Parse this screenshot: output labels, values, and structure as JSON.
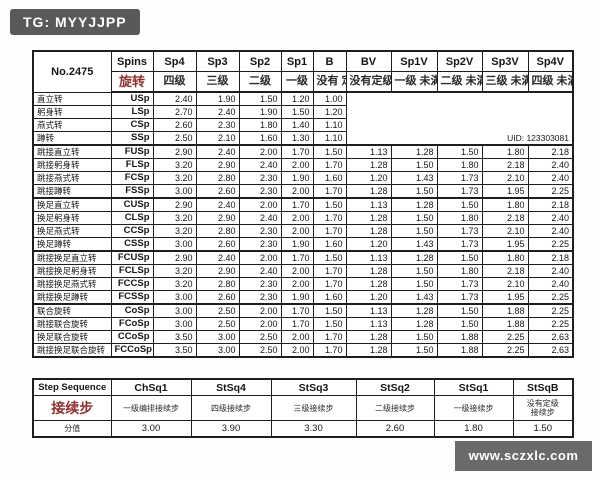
{
  "badge": {
    "text": "TG: MYYJJPP"
  },
  "watermark": {
    "text": "www.sczxlc.com"
  },
  "colors": {
    "accent_red": "#8e3230",
    "badge_bg": "#59595b",
    "watermark_bg": "#6a6a6a",
    "border": "#1e1e1e"
  },
  "table": {
    "corner_label": "No.2475",
    "uid": "UID: 123303081",
    "columns": [
      {
        "code": "Spins",
        "sub": "旋转"
      },
      {
        "code": "Sp4",
        "sub": "四级"
      },
      {
        "code": "Sp3",
        "sub": "三级"
      },
      {
        "code": "Sp2",
        "sub": "二级"
      },
      {
        "code": "Sp1",
        "sub": "一级"
      },
      {
        "code": "B",
        "sub": "没有\n定级"
      },
      {
        "code": "BV",
        "sub": "没有定级\n未满足要求"
      },
      {
        "code": "Sp1V",
        "sub": "一级\n未满足要求"
      },
      {
        "code": "Sp2V",
        "sub": "二级\n未满足要求"
      },
      {
        "code": "Sp3V",
        "sub": "三级\n未满足要求"
      },
      {
        "code": "Sp4V",
        "sub": "四级\n未满足要求"
      }
    ],
    "group_end_rows": [
      3,
      7,
      11,
      15
    ],
    "rows": [
      {
        "name": "直立转",
        "code": "USp",
        "values": [
          "2.40",
          "1.90",
          "1.50",
          "1.20",
          "1.00",
          "",
          "",
          "",
          "",
          ""
        ]
      },
      {
        "name": "躬身转",
        "code": "LSp",
        "values": [
          "2.70",
          "2.40",
          "1.90",
          "1.50",
          "1.20",
          "",
          "",
          "",
          "",
          ""
        ]
      },
      {
        "name": "燕式转",
        "code": "CSp",
        "values": [
          "2.60",
          "2.30",
          "1.80",
          "1.40",
          "1.10",
          "",
          "",
          "",
          "",
          ""
        ]
      },
      {
        "name": "蹲转",
        "code": "SSp",
        "values": [
          "2.50",
          "2.10",
          "1.60",
          "1.30",
          "1.10",
          "",
          "",
          "",
          "",
          ""
        ]
      },
      {
        "name": "跳接直立转",
        "code": "FUSp",
        "values": [
          "2.90",
          "2.40",
          "2.00",
          "1.70",
          "1.50",
          "1.13",
          "1.28",
          "1.50",
          "1.80",
          "2.18"
        ]
      },
      {
        "name": "跳接躬身转",
        "code": "FLSp",
        "values": [
          "3.20",
          "2.90",
          "2.40",
          "2.00",
          "1.70",
          "1.28",
          "1.50",
          "1.80",
          "2.18",
          "2.40"
        ]
      },
      {
        "name": "跳接燕式转",
        "code": "FCSp",
        "values": [
          "3.20",
          "2.80",
          "2.30",
          "1.90",
          "1.60",
          "1.20",
          "1.43",
          "1.73",
          "2.10",
          "2.40"
        ]
      },
      {
        "name": "跳接蹲转",
        "code": "FSSp",
        "values": [
          "3.00",
          "2.60",
          "2.30",
          "2.00",
          "1.70",
          "1.28",
          "1.50",
          "1.73",
          "1.95",
          "2.25"
        ]
      },
      {
        "name": "换足直立转",
        "code": "CUSp",
        "values": [
          "2.90",
          "2.40",
          "2.00",
          "1.70",
          "1.50",
          "1.13",
          "1.28",
          "1.50",
          "1.80",
          "2.18"
        ]
      },
      {
        "name": "换足躬身转",
        "code": "CLSp",
        "values": [
          "3.20",
          "2.90",
          "2.40",
          "2.00",
          "1.70",
          "1.28",
          "1.50",
          "1.80",
          "2.18",
          "2.40"
        ]
      },
      {
        "name": "换足燕式转",
        "code": "CCSp",
        "values": [
          "3.20",
          "2.80",
          "2.30",
          "2.00",
          "1.70",
          "1.28",
          "1.50",
          "1.73",
          "2.10",
          "2.40"
        ]
      },
      {
        "name": "换足蹲转",
        "code": "CSSp",
        "values": [
          "3.00",
          "2.60",
          "2.30",
          "1.90",
          "1.60",
          "1.20",
          "1.43",
          "1.73",
          "1.95",
          "2.25"
        ]
      },
      {
        "name": "跳接换足直立转",
        "code": "FCUSp",
        "values": [
          "2.90",
          "2.40",
          "2.00",
          "1.70",
          "1.50",
          "1.13",
          "1.28",
          "1.50",
          "1.80",
          "2.18"
        ]
      },
      {
        "name": "跳接换足躬身转",
        "code": "FCLSp",
        "values": [
          "3.20",
          "2.90",
          "2.40",
          "2.00",
          "1.70",
          "1.28",
          "1.50",
          "1.80",
          "2.18",
          "2.40"
        ]
      },
      {
        "name": "跳接换足燕式转",
        "code": "FCCSp",
        "values": [
          "3.20",
          "2.80",
          "2.30",
          "2.00",
          "1.70",
          "1.28",
          "1.50",
          "1.73",
          "2.10",
          "2.40"
        ]
      },
      {
        "name": "跳接换足蹲转",
        "code": "FCSSp",
        "values": [
          "3.00",
          "2.60",
          "2.30",
          "1.90",
          "1.60",
          "1.20",
          "1.43",
          "1.73",
          "1.95",
          "2.25"
        ]
      },
      {
        "name": "联合旋转",
        "code": "CoSp",
        "values": [
          "3.00",
          "2.50",
          "2.00",
          "1.70",
          "1.50",
          "1.13",
          "1.28",
          "1.50",
          "1.88",
          "2.25"
        ]
      },
      {
        "name": "跳接联合旋转",
        "code": "FCoSp",
        "values": [
          "3.00",
          "2.50",
          "2.00",
          "1.70",
          "1.50",
          "1.13",
          "1.28",
          "1.50",
          "1.88",
          "2.25"
        ]
      },
      {
        "name": "换足联合旋转",
        "code": "CCoSp",
        "values": [
          "3.50",
          "3.00",
          "2.50",
          "2.00",
          "1.70",
          "1.28",
          "1.50",
          "1.88",
          "2.25",
          "2.63"
        ]
      },
      {
        "name": "跳接换足联合旋转",
        "code": "FCCoSp",
        "values": [
          "3.50",
          "3.00",
          "2.50",
          "2.00",
          "1.70",
          "1.28",
          "1.50",
          "1.88",
          "2.25",
          "2.63"
        ]
      }
    ]
  },
  "steps": {
    "title": "Step Sequence",
    "red_label": "接续步",
    "score_label": "分值",
    "cols": [
      {
        "code": "ChSq1",
        "desc": "一级编排接续步",
        "value": "3.00"
      },
      {
        "code": "StSq4",
        "desc": "四级接续步",
        "value": "3.90"
      },
      {
        "code": "StSq3",
        "desc": "三级接续步",
        "value": "3.30"
      },
      {
        "code": "StSq2",
        "desc": "二级接续步",
        "value": "2.60"
      },
      {
        "code": "StSq1",
        "desc": "一级接续步",
        "value": "1.80"
      },
      {
        "code": "StSqB",
        "desc": "没有定级\n接续步",
        "value": "1.50"
      }
    ]
  }
}
